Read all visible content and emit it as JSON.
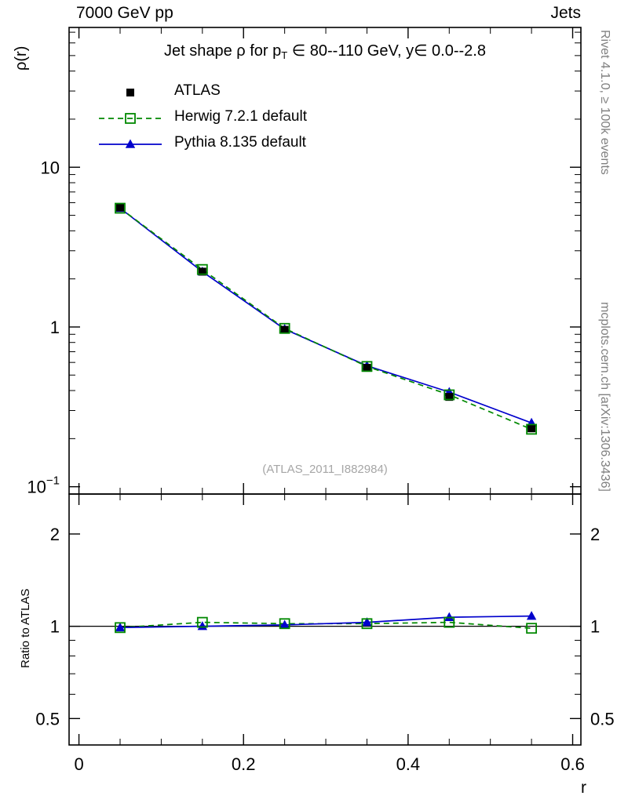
{
  "header": {
    "left": "7000 GeV pp",
    "right": "Jets"
  },
  "sidebar_right": {
    "top": "Rivet 4.1.0, ≥ 100k events",
    "bottom": "mcplots.cern.ch [arXiv:1306.3436]"
  },
  "watermark": "(ATLAS_2011_I882984)",
  "title": {
    "pre": "Jet shape ρ for p",
    "sub": "T",
    "post": " ∈ 80--110 GeV, y∈ 0.0--2.8"
  },
  "axes": {
    "ylabel": "ρ(r)",
    "xlabel": "r",
    "ratio_label": "Ratio to ATLAS"
  },
  "chart_data": {
    "type": "line",
    "title": "Jet shape ρ for p_T ∈ 80--110 GeV, y∈ 0.0--2.8",
    "xlabel": "r",
    "ylabel": "ρ(r)",
    "yscale": "log",
    "xlim": [
      -0.012,
      0.61
    ],
    "xticks": [
      0,
      0.2,
      0.4,
      0.6
    ],
    "xminor_step": 0.05,
    "ylim": [
      0.09,
      75
    ],
    "yticks": [
      0.1,
      1,
      10
    ],
    "grid": false,
    "legend_position": "top-left",
    "x": [
      0.05,
      0.15,
      0.25,
      0.35,
      0.45,
      0.55
    ],
    "series": [
      {
        "name": "ATLAS",
        "color": "#000000",
        "marker": "square",
        "fill": true,
        "line": "none",
        "values": [
          5.6,
          2.22,
          0.96,
          0.555,
          0.365,
          0.232
        ]
      },
      {
        "name": "Herwig 7.2.1 default",
        "color": "#008800",
        "marker": "square",
        "fill": false,
        "line": "dashed",
        "values": [
          5.54,
          2.29,
          0.98,
          0.566,
          0.376,
          0.229
        ]
      },
      {
        "name": "Pythia 8.135 default",
        "color": "#0000cc",
        "marker": "triangle",
        "fill": true,
        "line": "solid",
        "values": [
          5.54,
          2.22,
          0.97,
          0.572,
          0.391,
          0.251
        ]
      }
    ],
    "ratio": {
      "label": "Ratio to ATLAS",
      "yscale": "log",
      "ylim": [
        0.41,
        2.7
      ],
      "yticks": [
        0.5,
        1,
        2
      ],
      "baseline": 1,
      "series": [
        {
          "name": "Herwig 7.2.1 default",
          "values": [
            0.99,
            1.03,
            1.02,
            1.02,
            1.03,
            0.985
          ]
        },
        {
          "name": "Pythia 8.135 default",
          "values": [
            0.99,
            1.0,
            1.01,
            1.03,
            1.07,
            1.08
          ]
        }
      ]
    }
  }
}
